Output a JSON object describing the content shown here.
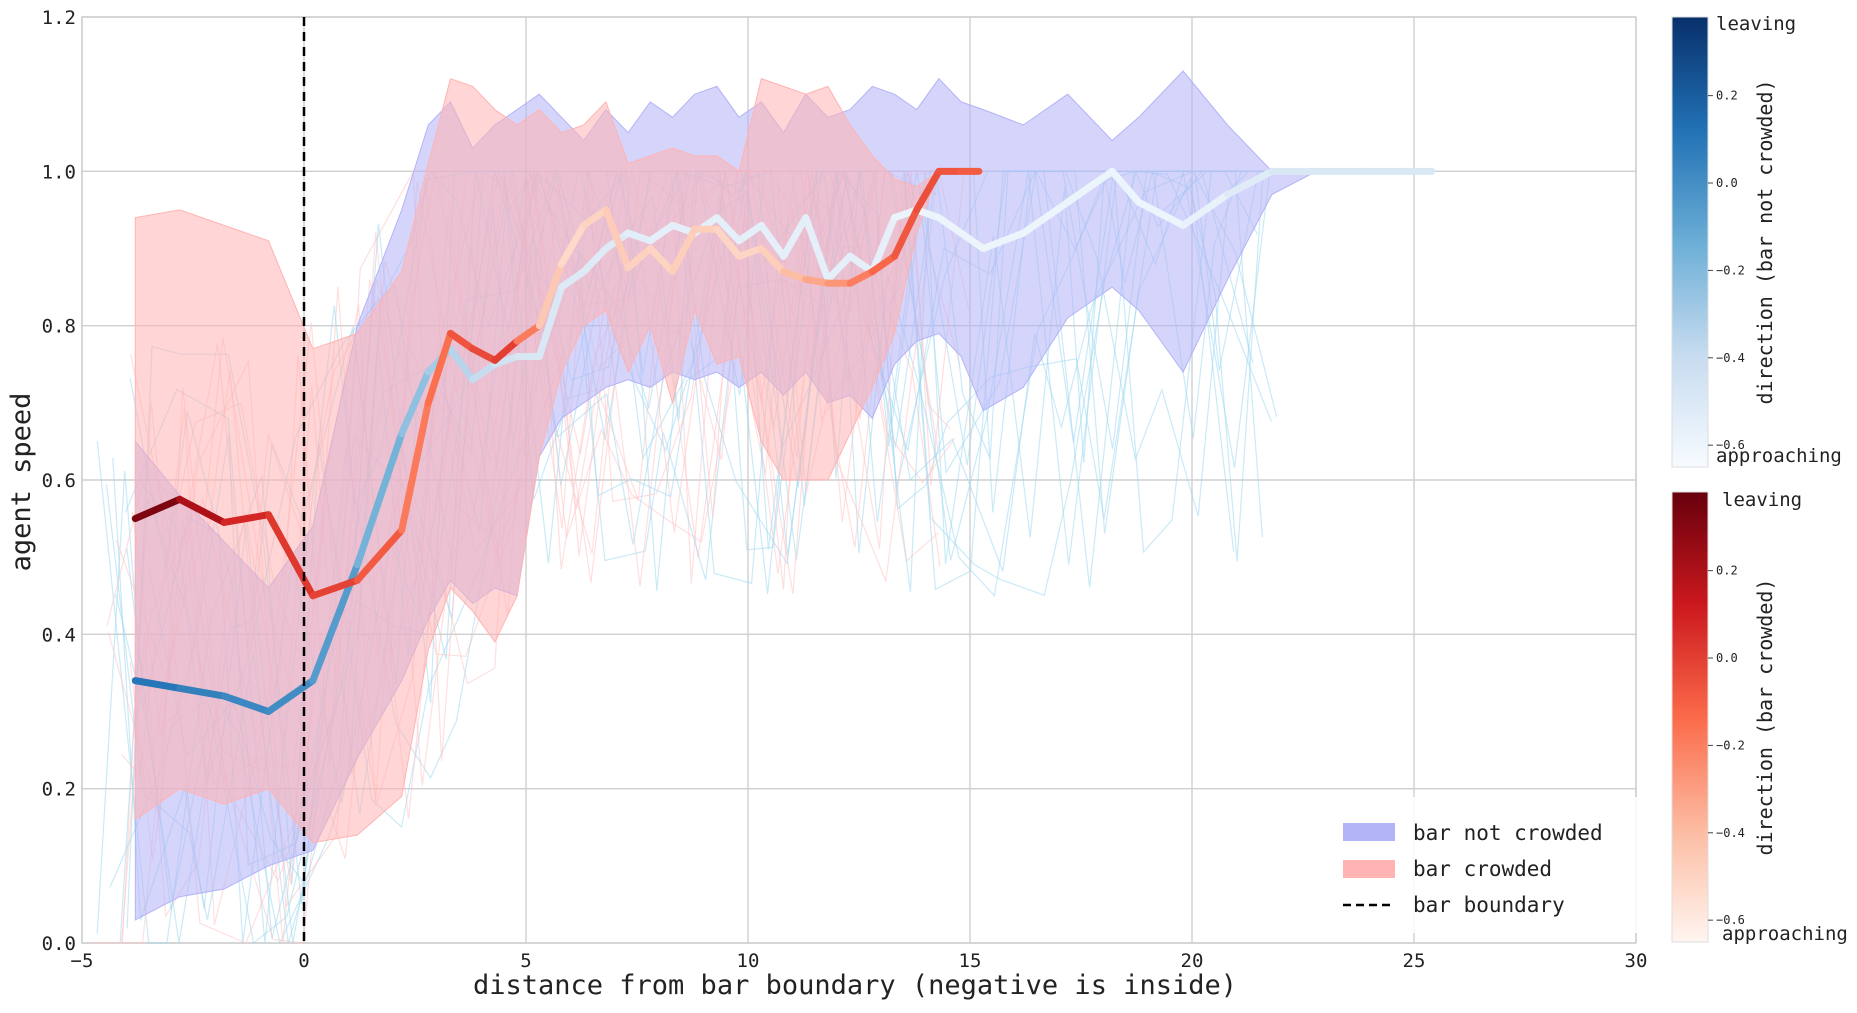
{
  "chart_data": {
    "type": "line",
    "xlabel": "distance from bar boundary (negative is inside)",
    "ylabel": "agent speed",
    "xlim": [
      -5,
      30
    ],
    "ylim": [
      0,
      1.2
    ],
    "xticks": [
      -5,
      0,
      5,
      10,
      15,
      20,
      25,
      30
    ],
    "yticks": [
      0.0,
      0.2,
      0.4,
      0.6,
      0.8,
      1.0,
      1.2
    ],
    "xtick_labels": [
      "−5",
      "0",
      "5",
      "10",
      "15",
      "20",
      "25",
      "30"
    ],
    "ytick_labels": [
      "0.0",
      "0.2",
      "0.4",
      "0.6",
      "0.8",
      "1.0",
      "1.2"
    ],
    "grid": true,
    "vline": {
      "x": 0,
      "style": "dashed",
      "color": "#000000"
    },
    "legend": {
      "placement": "lower-right",
      "entries": [
        {
          "label": "bar not crowded",
          "color": "#b3b3f8",
          "kind": "patch"
        },
        {
          "label": "bar crowded",
          "color": "#ffb3b3",
          "kind": "patch"
        },
        {
          "label": "bar boundary",
          "color": "#000000",
          "kind": "dashed-line"
        }
      ]
    },
    "series": [
      {
        "name": "bar not crowded",
        "colormap": "Blues",
        "fill_color": "#b3b3f8",
        "x": [
          -3.8,
          -2.8,
          -1.8,
          -0.8,
          0.2,
          1.2,
          2.2,
          2.8,
          3.3,
          3.8,
          4.3,
          4.8,
          5.3,
          5.8,
          6.3,
          6.8,
          7.3,
          7.8,
          8.3,
          8.8,
          9.3,
          9.8,
          10.3,
          10.8,
          11.3,
          11.8,
          12.3,
          12.8,
          13.3,
          13.8,
          14.3,
          14.8,
          15.3,
          16.2,
          17.2,
          18.2,
          18.8,
          19.8,
          20.8,
          21.8,
          22.8,
          23.8,
          24.8,
          25.4
        ],
        "y": [
          0.34,
          0.33,
          0.32,
          0.3,
          0.34,
          0.49,
          0.66,
          0.74,
          0.77,
          0.73,
          0.75,
          0.76,
          0.76,
          0.85,
          0.87,
          0.9,
          0.92,
          0.91,
          0.93,
          0.92,
          0.94,
          0.91,
          0.93,
          0.89,
          0.94,
          0.86,
          0.89,
          0.87,
          0.94,
          0.95,
          0.94,
          0.92,
          0.9,
          0.92,
          0.96,
          1.0,
          0.96,
          0.93,
          0.97,
          1.0,
          1.0,
          1.0,
          1.0,
          1.0
        ],
        "direction": [
          0.12,
          0.08,
          0.04,
          0.02,
          0.0,
          -0.12,
          -0.2,
          -0.28,
          -0.32,
          -0.38,
          -0.42,
          -0.48,
          -0.5,
          -0.5,
          -0.52,
          -0.52,
          -0.52,
          -0.55,
          -0.55,
          -0.55,
          -0.55,
          -0.55,
          -0.55,
          -0.55,
          -0.55,
          -0.55,
          -0.55,
          -0.55,
          -0.58,
          -0.6,
          -0.6,
          -0.6,
          -0.6,
          -0.6,
          -0.6,
          -0.6,
          -0.6,
          -0.6,
          -0.55,
          -0.5,
          -0.5,
          -0.5,
          -0.5,
          -0.5
        ],
        "band_upper": [
          0.65,
          0.58,
          0.52,
          0.46,
          0.54,
          0.8,
          0.95,
          1.06,
          1.09,
          1.03,
          1.06,
          1.08,
          1.1,
          1.07,
          1.04,
          1.08,
          1.05,
          1.09,
          1.07,
          1.1,
          1.11,
          1.07,
          1.09,
          1.05,
          1.1,
          1.07,
          1.08,
          1.11,
          1.1,
          1.08,
          1.12,
          1.09,
          1.08,
          1.06,
          1.1,
          1.04,
          1.07,
          1.13,
          1.06,
          1.0,
          1.0,
          1.0,
          1.0,
          1.0
        ],
        "band_lower": [
          0.03,
          0.06,
          0.07,
          0.1,
          0.12,
          0.24,
          0.34,
          0.42,
          0.47,
          0.44,
          0.46,
          0.45,
          0.63,
          0.68,
          0.7,
          0.72,
          0.73,
          0.72,
          0.74,
          0.73,
          0.74,
          0.72,
          0.74,
          0.71,
          0.74,
          0.7,
          0.71,
          0.68,
          0.75,
          0.78,
          0.79,
          0.76,
          0.69,
          0.72,
          0.81,
          0.85,
          0.82,
          0.74,
          0.86,
          0.97,
          1.0,
          1.0,
          1.0,
          1.0
        ]
      },
      {
        "name": "bar crowded",
        "colormap": "Reds",
        "fill_color": "#ffb3b3",
        "x": [
          -3.8,
          -2.8,
          -1.8,
          -0.8,
          0.2,
          1.2,
          2.2,
          2.8,
          3.3,
          3.8,
          4.3,
          4.8,
          5.3,
          5.8,
          6.3,
          6.8,
          7.3,
          7.8,
          8.3,
          8.8,
          9.3,
          9.8,
          10.3,
          10.8,
          11.3,
          11.8,
          12.3,
          12.8,
          13.3,
          13.8,
          14.3,
          14.8,
          15.2
        ],
        "y": [
          0.55,
          0.575,
          0.545,
          0.555,
          0.45,
          0.47,
          0.535,
          0.7,
          0.79,
          0.77,
          0.755,
          0.78,
          0.8,
          0.88,
          0.93,
          0.95,
          0.875,
          0.9,
          0.87,
          0.925,
          0.925,
          0.89,
          0.9,
          0.87,
          0.86,
          0.855,
          0.855,
          0.87,
          0.89,
          0.95,
          1.0,
          1.0,
          1.0
        ],
        "direction": [
          0.35,
          0.3,
          0.1,
          0.05,
          0.0,
          -0.02,
          -0.15,
          -0.22,
          -0.08,
          -0.05,
          -0.02,
          0.02,
          -0.4,
          -0.5,
          -0.55,
          -0.45,
          -0.48,
          -0.5,
          -0.5,
          -0.45,
          -0.5,
          -0.52,
          -0.5,
          -0.45,
          -0.35,
          -0.3,
          -0.25,
          -0.15,
          -0.1,
          -0.05,
          -0.05,
          -0.08,
          -0.1
        ],
        "band_upper": [
          0.94,
          0.95,
          0.93,
          0.91,
          0.77,
          0.79,
          0.87,
          1.01,
          1.12,
          1.11,
          1.08,
          1.06,
          1.08,
          1.05,
          1.06,
          1.09,
          1.01,
          1.02,
          1.03,
          1.02,
          1.02,
          1.0,
          1.12,
          1.11,
          1.1,
          1.11,
          1.06,
          1.02,
          0.99,
          0.98,
          1.0,
          1.0,
          1.0
        ],
        "band_lower": [
          0.16,
          0.2,
          0.18,
          0.2,
          0.13,
          0.14,
          0.19,
          0.38,
          0.46,
          0.43,
          0.39,
          0.45,
          0.63,
          0.74,
          0.8,
          0.82,
          0.74,
          0.8,
          0.7,
          0.82,
          0.75,
          0.76,
          0.65,
          0.6,
          0.6,
          0.6,
          0.66,
          0.72,
          0.79,
          0.92,
          1.0,
          1.0,
          1.0
        ]
      }
    ],
    "colorbars": [
      {
        "label": "direction (bar not crowded)",
        "colormap": "Blues",
        "top_text": "leaving",
        "bottom_text": "approaching",
        "range": [
          -0.65,
          0.38
        ],
        "ticks": [
          0.2,
          0.0,
          -0.2,
          -0.4,
          -0.6
        ],
        "tick_labels": [
          "0.2",
          "0.0",
          "−0.2",
          "−0.4",
          "−0.6"
        ]
      },
      {
        "label": "direction (bar crowded)",
        "colormap": "Reds",
        "top_text": "leaving",
        "bottom_text": "approaching",
        "range": [
          -0.65,
          0.38
        ],
        "ticks": [
          0.2,
          0.0,
          -0.2,
          -0.4,
          -0.6
        ],
        "tick_labels": [
          "0.2",
          "0.0",
          "−0.2",
          "−0.4",
          "−0.6"
        ]
      }
    ]
  }
}
